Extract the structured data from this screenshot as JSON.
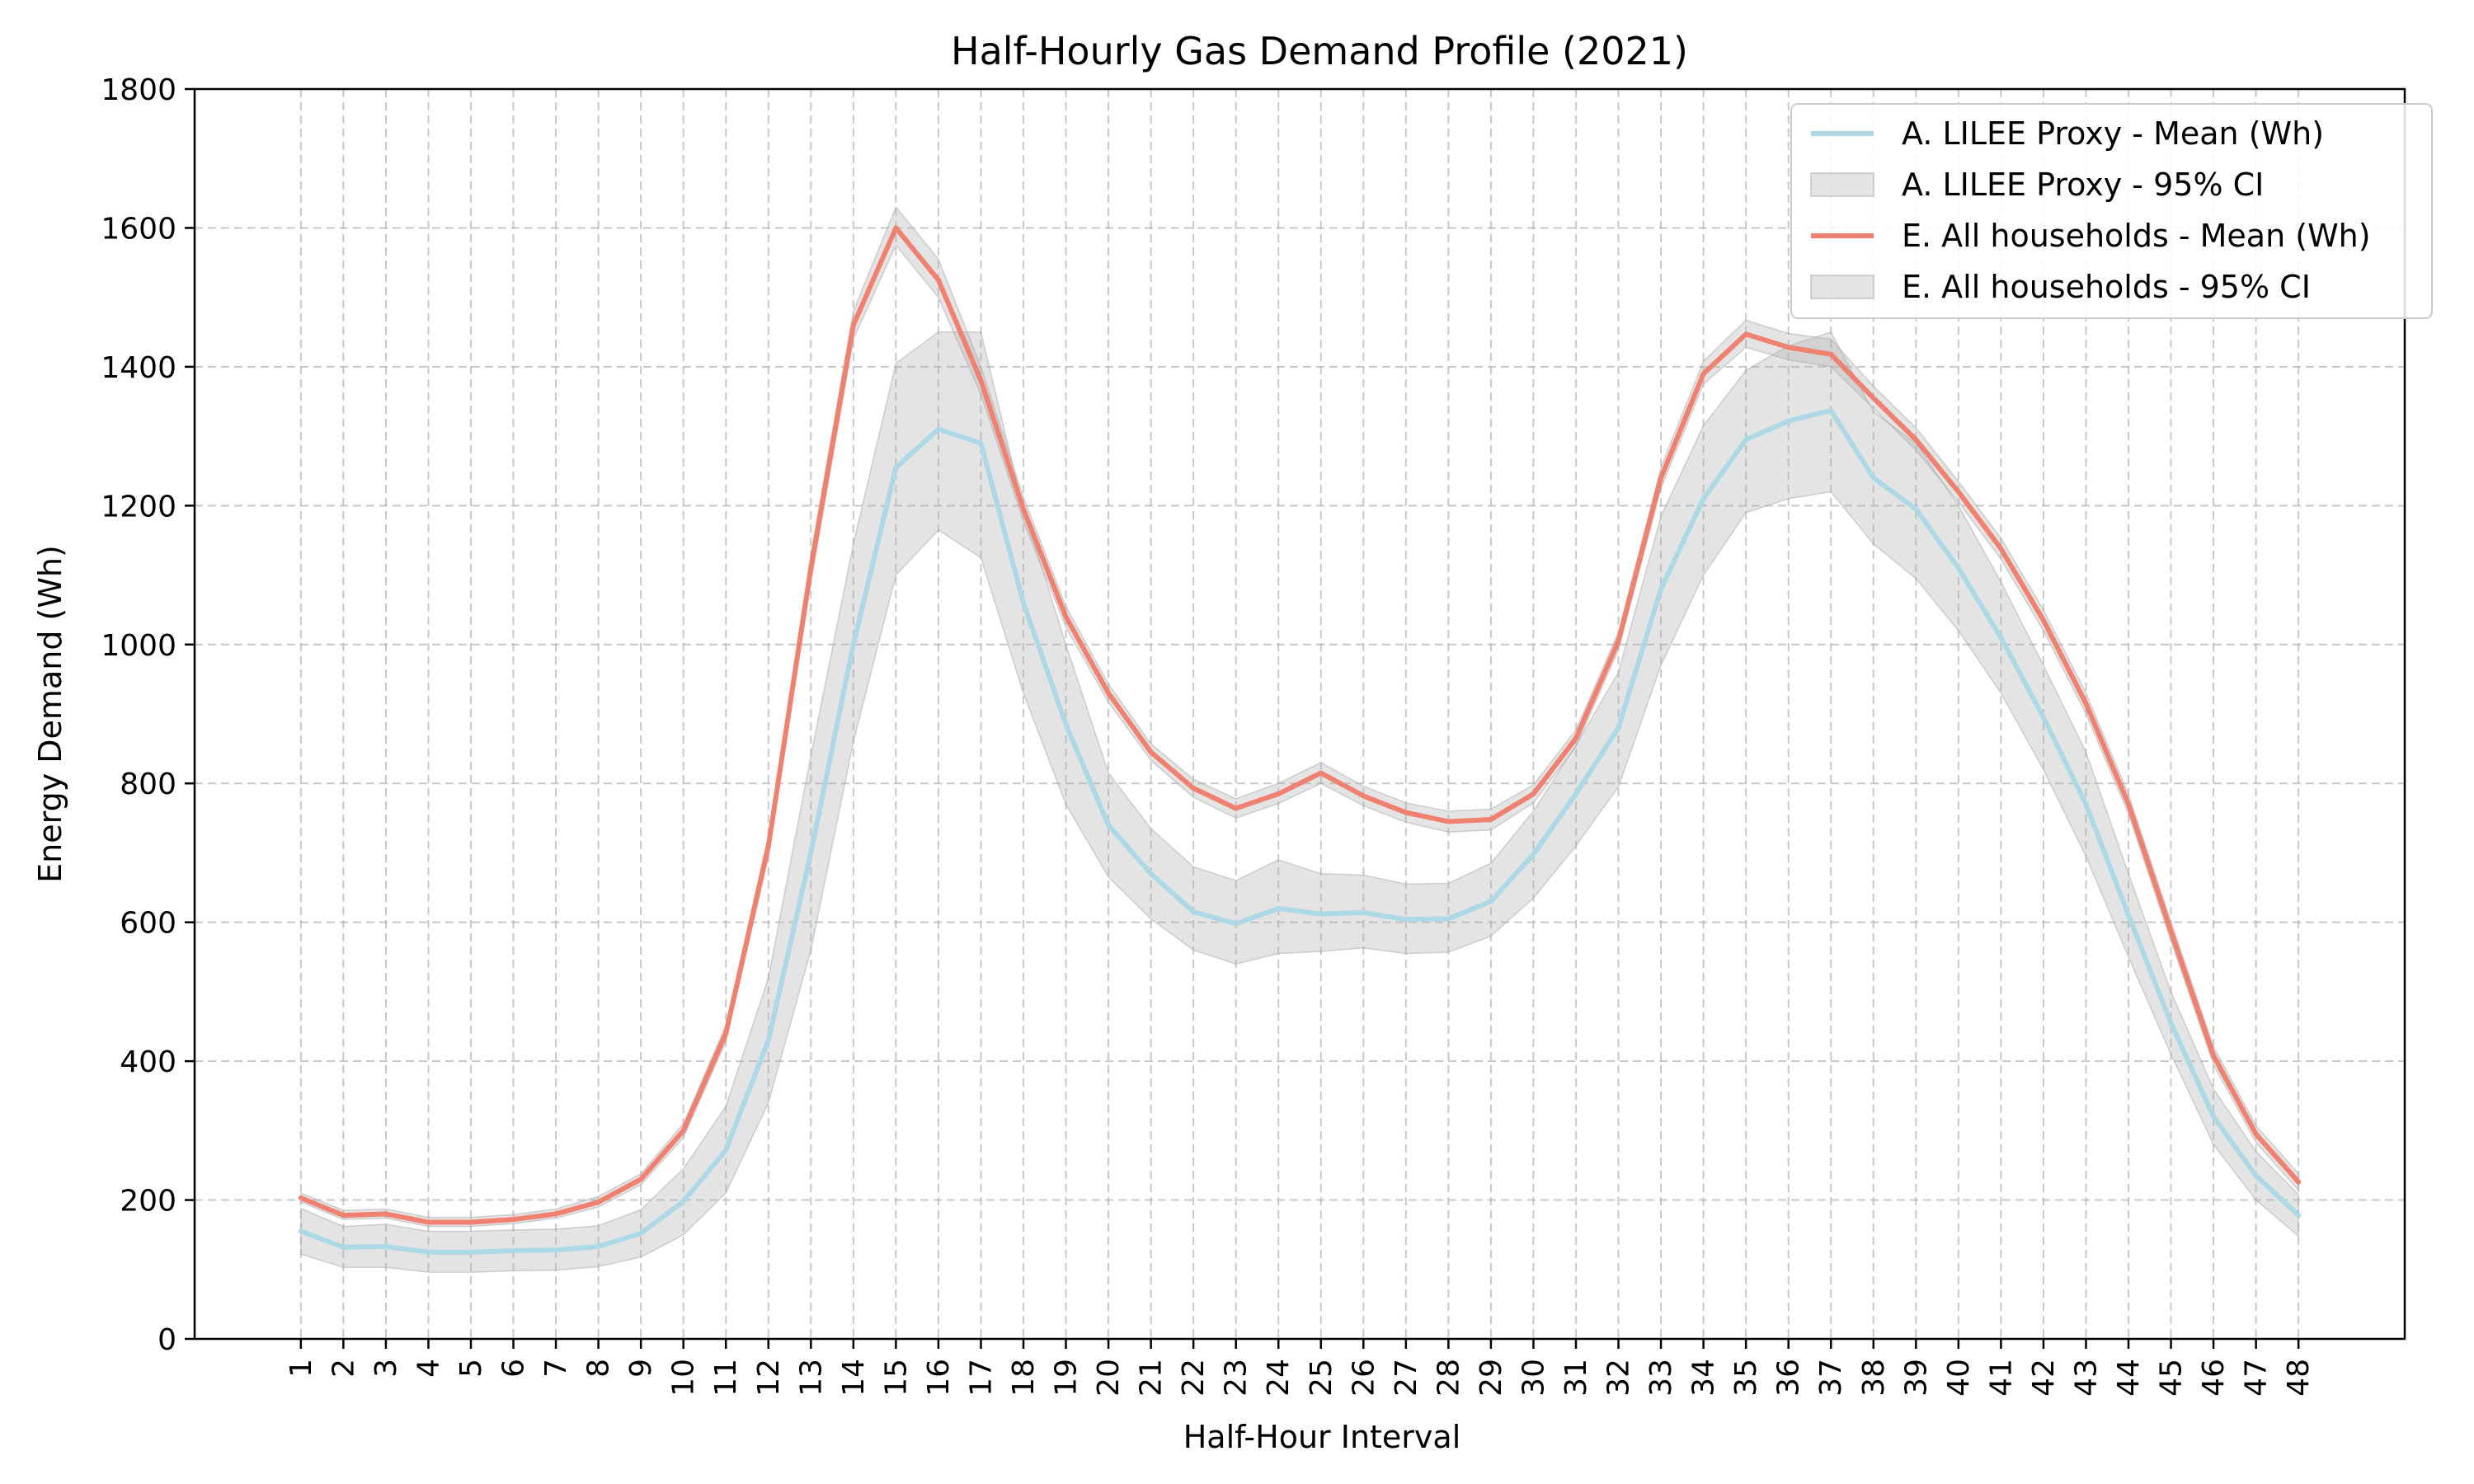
{
  "chart_data": {
    "type": "line",
    "title": "Half-Hourly Gas Demand Profile (2021)",
    "xlabel": "Half-Hour Interval",
    "ylabel": "Energy Demand (Wh)",
    "x": [
      1,
      2,
      3,
      4,
      5,
      6,
      7,
      8,
      9,
      10,
      11,
      12,
      13,
      14,
      15,
      16,
      17,
      18,
      19,
      20,
      21,
      22,
      23,
      24,
      25,
      26,
      27,
      28,
      29,
      30,
      31,
      32,
      33,
      34,
      35,
      36,
      37,
      38,
      39,
      40,
      41,
      42,
      43,
      44,
      45,
      46,
      47,
      48
    ],
    "xlim": [
      -1.5,
      50.5
    ],
    "ylim": [
      0,
      1800
    ],
    "yticks": [
      0,
      200,
      400,
      600,
      800,
      1000,
      1200,
      1400,
      1600,
      1800
    ],
    "grid": true,
    "legend_position": "top-right",
    "series": [
      {
        "name": "A. LILEE Proxy - Mean (Wh)",
        "color": "#add8e6",
        "values": [
          155,
          132,
          133,
          125,
          125,
          127,
          128,
          133,
          152,
          198,
          272,
          430,
          700,
          1000,
          1255,
          1310,
          1290,
          1060,
          885,
          740,
          670,
          615,
          598,
          620,
          612,
          614,
          604,
          605,
          630,
          698,
          785,
          880,
          1080,
          1210,
          1295,
          1322,
          1337,
          1240,
          1195,
          1110,
          1010,
          895,
          770,
          610,
          455,
          320,
          235,
          178
        ],
        "ci_name": "A. LILEE Proxy - 95% CI",
        "ci_lower": [
          122,
          103,
          103,
          96,
          96,
          98,
          99,
          104,
          118,
          150,
          210,
          340,
          560,
          860,
          1100,
          1165,
          1125,
          930,
          770,
          665,
          605,
          560,
          540,
          555,
          558,
          563,
          555,
          557,
          580,
          635,
          710,
          795,
          970,
          1100,
          1190,
          1210,
          1220,
          1145,
          1095,
          1020,
          930,
          820,
          695,
          550,
          410,
          280,
          200,
          148
        ],
        "ci_upper": [
          188,
          162,
          165,
          155,
          155,
          157,
          158,
          163,
          186,
          245,
          335,
          520,
          840,
          1145,
          1405,
          1450,
          1450,
          1195,
          1000,
          815,
          735,
          680,
          660,
          690,
          670,
          668,
          655,
          656,
          685,
          760,
          855,
          960,
          1185,
          1315,
          1395,
          1430,
          1450,
          1335,
          1290,
          1200,
          1090,
          970,
          845,
          670,
          500,
          360,
          270,
          208
        ]
      },
      {
        "name": "E. All households - Mean (Wh)",
        "color": "#f08070",
        "values": [
          203,
          178,
          180,
          168,
          168,
          172,
          180,
          197,
          230,
          300,
          440,
          710,
          1110,
          1460,
          1600,
          1525,
          1380,
          1195,
          1040,
          930,
          845,
          793,
          764,
          785,
          815,
          782,
          758,
          745,
          748,
          785,
          865,
          1005,
          1240,
          1390,
          1447,
          1428,
          1418,
          1355,
          1295,
          1220,
          1138,
          1035,
          915,
          770,
          587,
          408,
          295,
          226
        ],
        "ci_name": "E. All households - 95% CI",
        "ci_lower": [
          197,
          172,
          174,
          162,
          162,
          166,
          174,
          190,
          222,
          290,
          428,
          695,
          1090,
          1440,
          1575,
          1500,
          1360,
          1178,
          1025,
          917,
          833,
          780,
          750,
          771,
          800,
          768,
          744,
          730,
          733,
          772,
          853,
          992,
          1225,
          1375,
          1428,
          1410,
          1400,
          1340,
          1280,
          1205,
          1123,
          1020,
          900,
          756,
          573,
          395,
          283,
          214
        ],
        "ci_upper": [
          210,
          185,
          187,
          175,
          175,
          179,
          187,
          205,
          238,
          310,
          452,
          725,
          1130,
          1480,
          1630,
          1555,
          1400,
          1212,
          1055,
          943,
          857,
          806,
          778,
          800,
          830,
          796,
          772,
          760,
          763,
          798,
          877,
          1018,
          1255,
          1408,
          1467,
          1448,
          1440,
          1372,
          1312,
          1235,
          1153,
          1050,
          930,
          784,
          601,
          421,
          307,
          238
        ]
      }
    ]
  }
}
